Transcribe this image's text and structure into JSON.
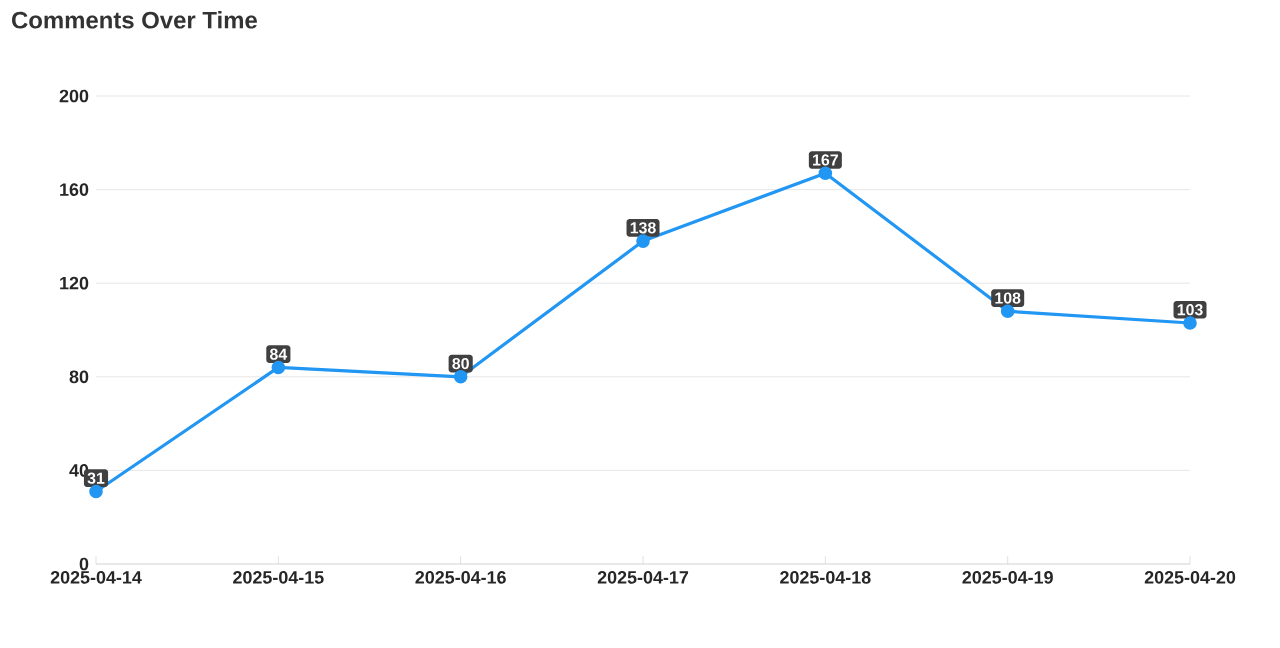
{
  "chart_data": {
    "type": "line",
    "title": "Comments Over Time",
    "categories": [
      "2025-04-14",
      "2025-04-15",
      "2025-04-16",
      "2025-04-17",
      "2025-04-18",
      "2025-04-19",
      "2025-04-20"
    ],
    "values": [
      31,
      84,
      80,
      138,
      167,
      108,
      103
    ],
    "color": "#2196f3",
    "ylim": [
      0,
      200
    ],
    "yticks": [
      0,
      40,
      80,
      120,
      160,
      200
    ],
    "grid": "y",
    "marker": "circle",
    "line_style": "solid",
    "data_labels": true
  }
}
